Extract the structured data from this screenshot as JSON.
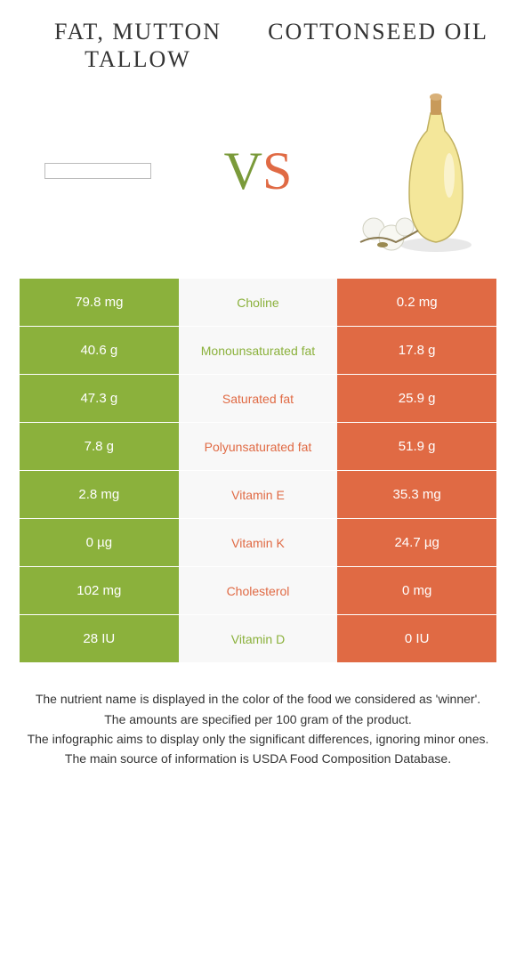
{
  "colors": {
    "left_bg": "#8bb13c",
    "right_bg": "#e06a44",
    "mid_bg": "#f8f8f8",
    "win_left": "#8bb13c",
    "win_right": "#e06a44",
    "body_bg": "#ffffff",
    "text": "#333333"
  },
  "header": {
    "left_title": "Fat, mutton tallow",
    "right_title": "Cottonseed oil",
    "vs_v": "V",
    "vs_s": "S"
  },
  "table": {
    "cell_padding": "18px 10px",
    "font_size": 15,
    "rows": [
      {
        "left": "79.8 mg",
        "name": "Choline",
        "right": "0.2 mg",
        "winner": "left"
      },
      {
        "left": "40.6 g",
        "name": "Monounsaturated fat",
        "right": "17.8 g",
        "winner": "left"
      },
      {
        "left": "47.3 g",
        "name": "Saturated fat",
        "right": "25.9 g",
        "winner": "right"
      },
      {
        "left": "7.8 g",
        "name": "Polyunsaturated fat",
        "right": "51.9 g",
        "winner": "right"
      },
      {
        "left": "2.8 mg",
        "name": "Vitamin E",
        "right": "35.3 mg",
        "winner": "right"
      },
      {
        "left": "0 µg",
        "name": "Vitamin K",
        "right": "24.7 µg",
        "winner": "right"
      },
      {
        "left": "102 mg",
        "name": "Cholesterol",
        "right": "0 mg",
        "winner": "right"
      },
      {
        "left": "28 IU",
        "name": "Vitamin D",
        "right": "0 IU",
        "winner": "left"
      }
    ]
  },
  "footnotes": [
    "The nutrient name is displayed in the color of the food we considered as 'winner'.",
    "The amounts are specified per 100 gram of the product.",
    "The infographic aims to display only the significant differences, ignoring minor ones.",
    "The main source of information is USDA Food Composition Database."
  ]
}
